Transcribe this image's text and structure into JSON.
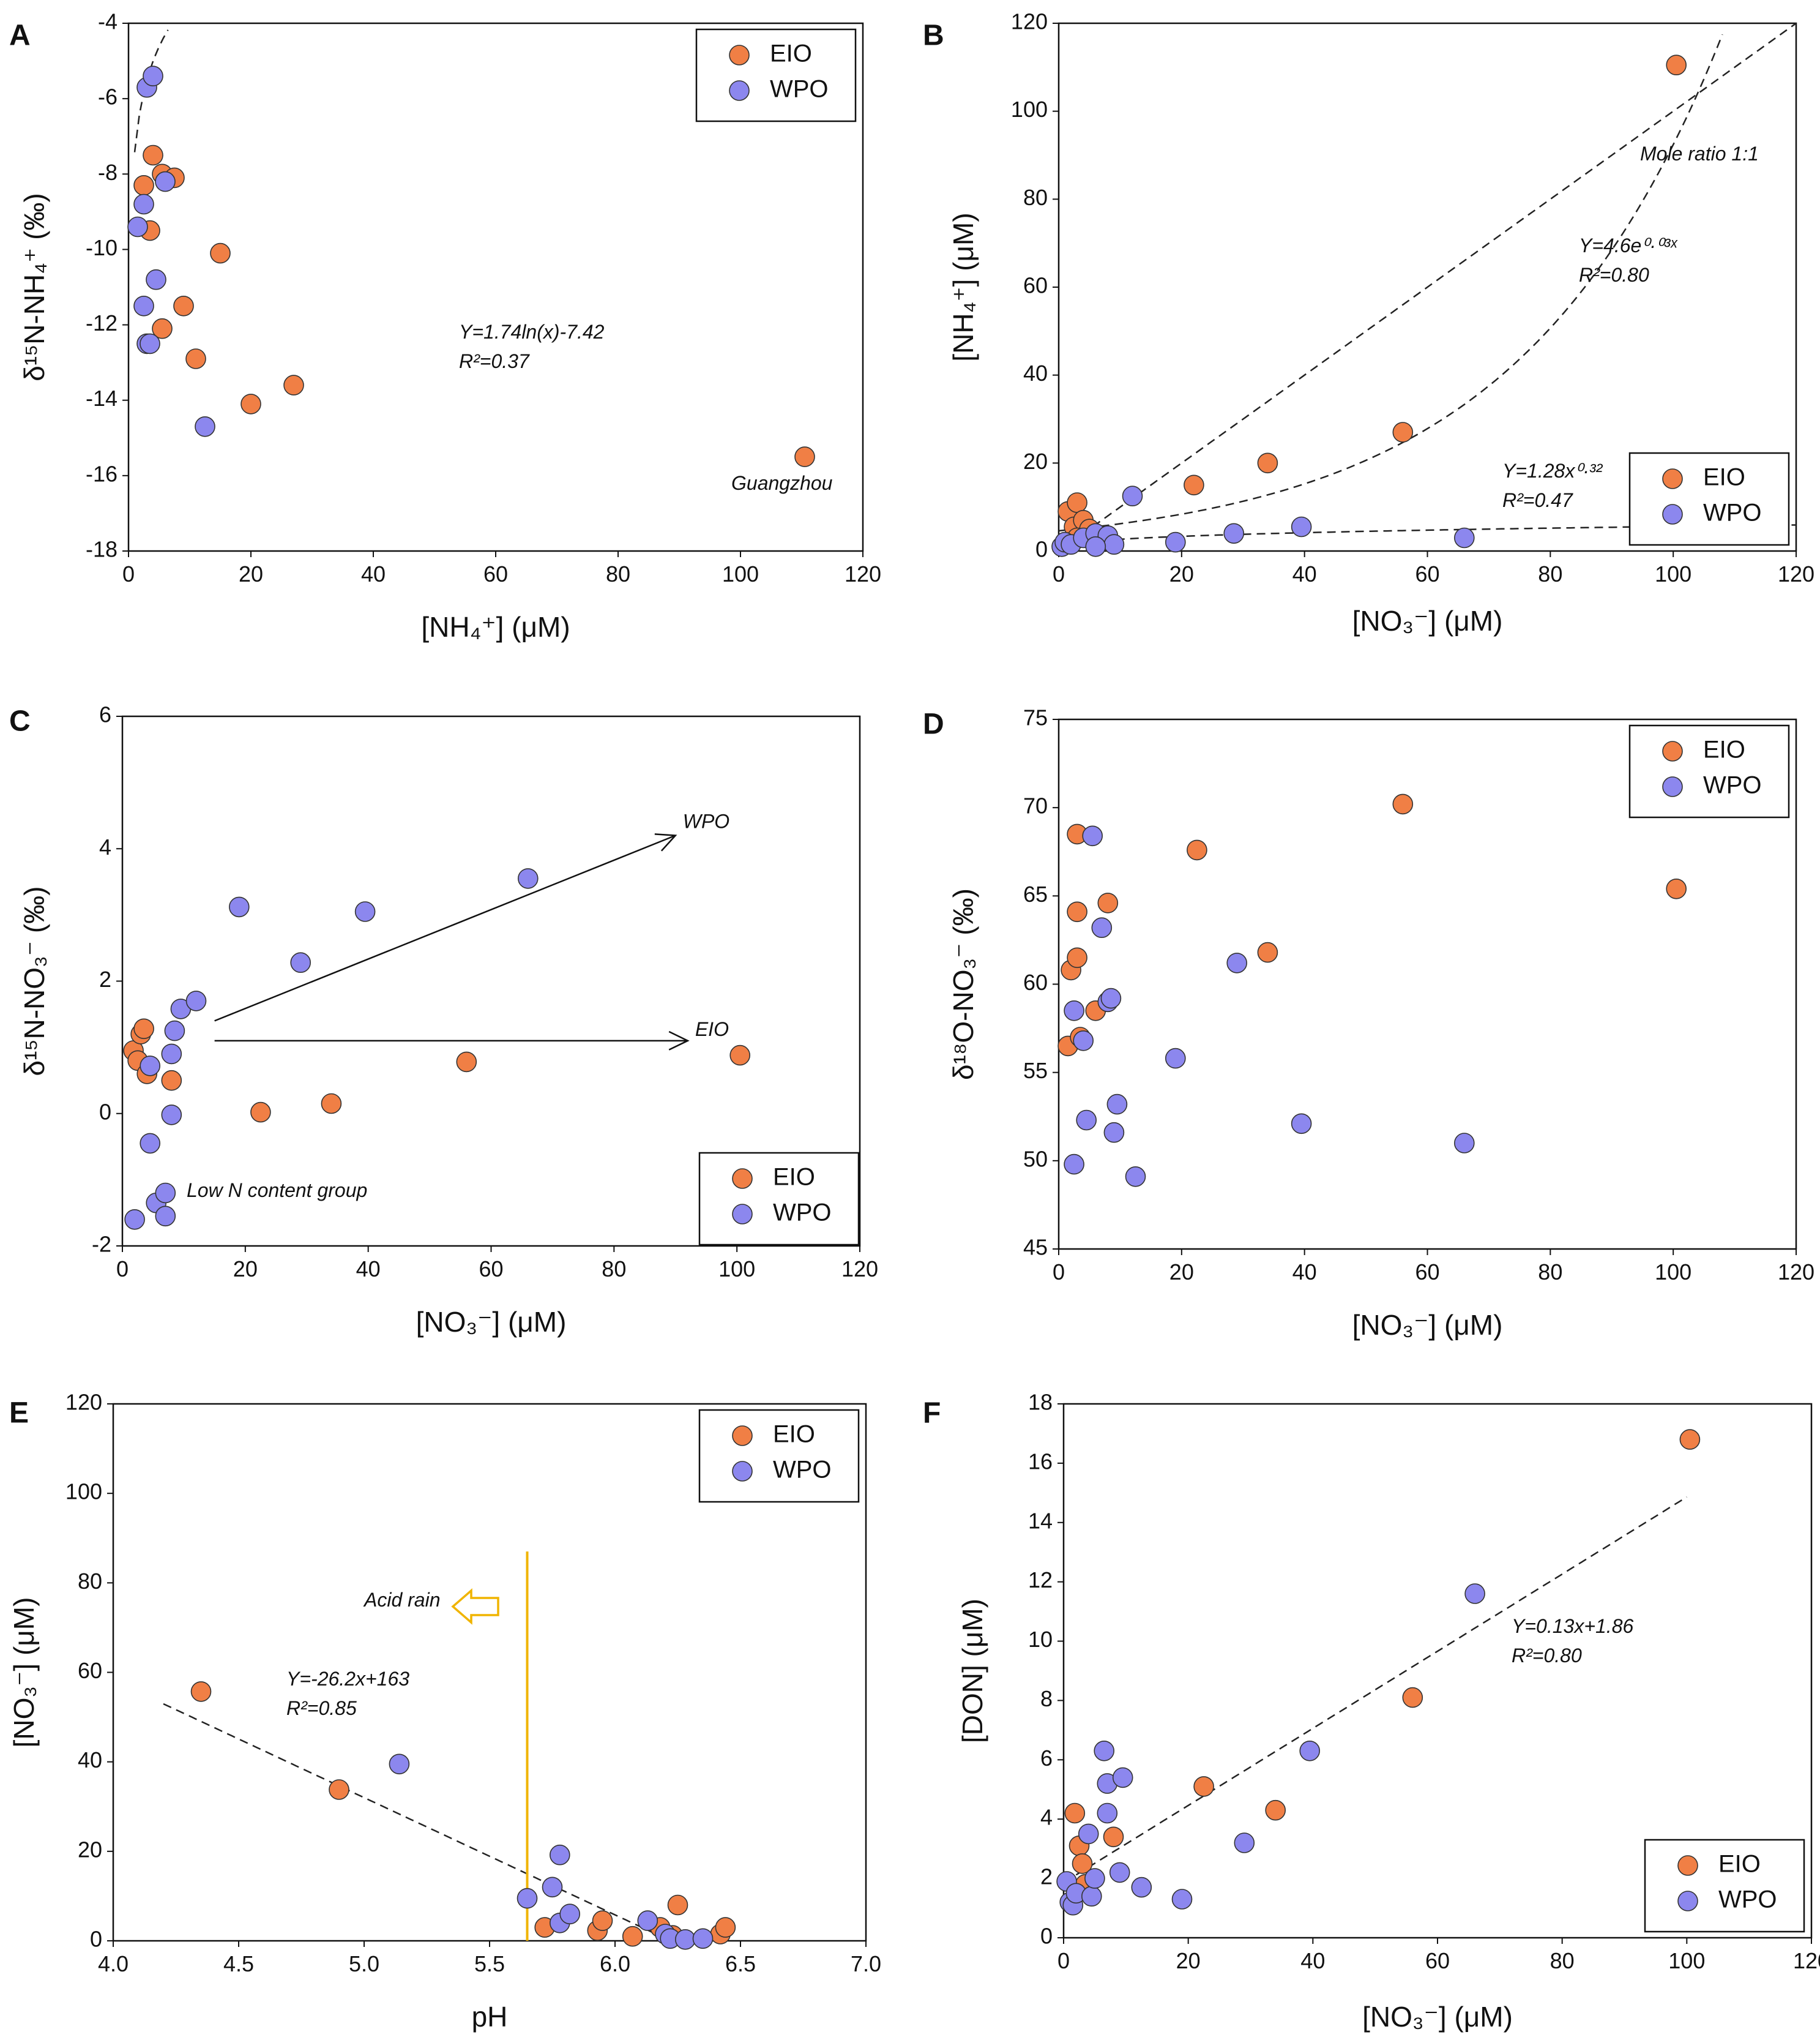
{
  "figure": {
    "colors": {
      "EIO": "#f07f45",
      "WPO": "#8c87ee",
      "acid_line": "#f0b400",
      "axis": "#111111"
    }
  },
  "chart_data": [
    {
      "id": "A",
      "panel_letter": "A",
      "type": "scatter",
      "xlabel": "[NH₄⁺] (μM)",
      "ylabel": "δ¹⁵N-NH₄⁺ (‰)",
      "xlim": [
        0,
        120
      ],
      "ylim": [
        -18,
        -4
      ],
      "xticks": [
        0,
        20,
        40,
        60,
        80,
        100,
        120
      ],
      "yticks": [
        -18,
        -16,
        -14,
        -12,
        -10,
        -8,
        -6,
        -4
      ],
      "legend": {
        "position": "top-right",
        "entries": [
          "EIO",
          "WPO"
        ]
      },
      "series": [
        {
          "name": "EIO",
          "points": [
            [
              2.5,
              -8.3
            ],
            [
              4,
              -7.5
            ],
            [
              5.5,
              -8.0
            ],
            [
              7.5,
              -8.1
            ],
            [
              3.5,
              -9.5
            ],
            [
              5.5,
              -12.1
            ],
            [
              9,
              -11.5
            ],
            [
              11,
              -12.9
            ],
            [
              15,
              -10.1
            ],
            [
              20,
              -14.1
            ],
            [
              27,
              -13.6
            ],
            [
              110.5,
              -15.5
            ]
          ]
        },
        {
          "name": "WPO",
          "points": [
            [
              3,
              -5.7
            ],
            [
              4,
              -5.4
            ],
            [
              6,
              -8.2
            ],
            [
              2.5,
              -8.8
            ],
            [
              1.5,
              -9.4
            ],
            [
              4.5,
              -10.8
            ],
            [
              2.5,
              -11.5
            ],
            [
              3,
              -12.5
            ],
            [
              3.5,
              -12.5
            ],
            [
              12.5,
              -14.7
            ]
          ]
        }
      ],
      "fits": [
        {
          "kind": "log",
          "a": 1.74,
          "b": -7.42,
          "x_range": [
            1,
            110
          ]
        }
      ],
      "annotations": [
        {
          "id": "fit",
          "lines": [
            "Y=1.74ln(x)-7.42",
            "R²=0.37"
          ]
        },
        {
          "id": "site",
          "lines": [
            "Guangzhou"
          ]
        }
      ]
    },
    {
      "id": "B",
      "panel_letter": "B",
      "type": "scatter",
      "xlabel": "[NO₃⁻] (μM)",
      "ylabel": "[NH₄⁺] (μM)",
      "xlim": [
        0,
        120
      ],
      "ylim": [
        0,
        120
      ],
      "xticks": [
        0,
        20,
        40,
        60,
        80,
        100,
        120
      ],
      "yticks": [
        0,
        20,
        40,
        60,
        80,
        100,
        120
      ],
      "legend": {
        "position": "bottom-right",
        "entries": [
          "EIO",
          "WPO"
        ]
      },
      "series": [
        {
          "name": "EIO",
          "points": [
            [
              1.5,
              9
            ],
            [
              3,
              11
            ],
            [
              2.5,
              5.5
            ],
            [
              4,
              7
            ],
            [
              5,
              5
            ],
            [
              3,
              3
            ],
            [
              22,
              15
            ],
            [
              34,
              20
            ],
            [
              56,
              27
            ],
            [
              100.5,
              110.5
            ]
          ]
        },
        {
          "name": "WPO",
          "points": [
            [
              0.5,
              1
            ],
            [
              1,
              2
            ],
            [
              2,
              1.5
            ],
            [
              4,
              3
            ],
            [
              6,
              4
            ],
            [
              8,
              3.5
            ],
            [
              9,
              1.5
            ],
            [
              6,
              1
            ],
            [
              12,
              12.5
            ],
            [
              19,
              2
            ],
            [
              28.5,
              4
            ],
            [
              39.5,
              5.5
            ],
            [
              66,
              3
            ]
          ]
        }
      ],
      "fits": [
        {
          "kind": "linear",
          "m": 1,
          "c": 0,
          "x_range": [
            0,
            120
          ]
        },
        {
          "kind": "exp",
          "a": 4.6,
          "b": 0.03,
          "x_range": [
            0,
            120
          ]
        },
        {
          "kind": "power",
          "a": 1.28,
          "b": 0.32,
          "x_range": [
            0.3,
            120
          ]
        }
      ],
      "annotations": [
        {
          "id": "ratio",
          "lines": [
            "Mole ratio 1:1"
          ]
        },
        {
          "id": "exp",
          "lines": [
            "Y=4.6e⁰·⁰³ˣ",
            "R²=0.80"
          ]
        },
        {
          "id": "power",
          "lines": [
            "Y=1.28x⁰·³²",
            "R²=0.47"
          ]
        }
      ]
    },
    {
      "id": "C",
      "panel_letter": "C",
      "type": "scatter",
      "xlabel": "[NO₃⁻] (μM)",
      "ylabel": "δ¹⁵N-NO₃⁻ (‰)",
      "xlim": [
        0,
        120
      ],
      "ylim": [
        -2,
        6
      ],
      "xticks": [
        0,
        20,
        40,
        60,
        80,
        100,
        120
      ],
      "yticks": [
        -2,
        0,
        2,
        4,
        6
      ],
      "legend": {
        "position": "bottom-right",
        "entries": [
          "EIO",
          "WPO"
        ]
      },
      "series": [
        {
          "name": "EIO",
          "points": [
            [
              1.8,
              0.95
            ],
            [
              2.5,
              0.8
            ],
            [
              3,
              1.2
            ],
            [
              3.5,
              1.28
            ],
            [
              4,
              0.6
            ],
            [
              8,
              0.5
            ],
            [
              22.5,
              0.02
            ],
            [
              34,
              0.15
            ],
            [
              56,
              0.78
            ],
            [
              100.5,
              0.88
            ]
          ]
        },
        {
          "name": "WPO",
          "points": [
            [
              2,
              -1.6
            ],
            [
              4.5,
              0.72
            ],
            [
              8,
              0.9
            ],
            [
              8.5,
              1.25
            ],
            [
              9.5,
              1.58
            ],
            [
              12,
              1.7
            ],
            [
              8,
              -0.02
            ],
            [
              4.5,
              -0.45
            ],
            [
              5.5,
              -1.35
            ],
            [
              7,
              -1.2
            ],
            [
              7,
              -1.55
            ],
            [
              19,
              3.12
            ],
            [
              29,
              2.28
            ],
            [
              39.5,
              3.05
            ],
            [
              66,
              3.55
            ]
          ]
        }
      ],
      "arrows": [
        {
          "label": "WPO",
          "from": [
            15,
            1.4
          ],
          "to": [
            90,
            4.2
          ]
        },
        {
          "label": "EIO",
          "from": [
            15,
            1.1
          ],
          "to": [
            92,
            1.1
          ]
        }
      ],
      "annotations": [
        {
          "id": "group",
          "lines": [
            "Low N content group"
          ]
        }
      ]
    },
    {
      "id": "D",
      "panel_letter": "D",
      "type": "scatter",
      "xlabel": "[NO₃⁻] (μM)",
      "ylabel": "δ¹⁸O-NO₃⁻ (‰)",
      "xlim": [
        0,
        120
      ],
      "ylim": [
        45,
        75
      ],
      "xticks": [
        0,
        20,
        40,
        60,
        80,
        100,
        120
      ],
      "yticks": [
        45,
        50,
        55,
        60,
        65,
        70,
        75
      ],
      "legend": {
        "position": "top-right",
        "entries": [
          "EIO",
          "WPO"
        ]
      },
      "series": [
        {
          "name": "EIO",
          "points": [
            [
              3,
              68.5
            ],
            [
              3,
              64.1
            ],
            [
              2,
              60.8
            ],
            [
              3,
              61.5
            ],
            [
              1.5,
              56.5
            ],
            [
              3.5,
              57
            ],
            [
              6,
              58.5
            ],
            [
              8,
              64.6
            ],
            [
              22.5,
              67.6
            ],
            [
              34,
              61.8
            ],
            [
              56,
              70.2
            ],
            [
              100.5,
              65.4
            ]
          ]
        },
        {
          "name": "WPO",
          "points": [
            [
              5.5,
              68.4
            ],
            [
              7,
              63.2
            ],
            [
              8,
              59
            ],
            [
              8.5,
              59.2
            ],
            [
              2.5,
              58.5
            ],
            [
              4,
              56.8
            ],
            [
              4.5,
              52.3
            ],
            [
              2.5,
              49.8
            ],
            [
              9,
              51.6
            ],
            [
              9.5,
              53.2
            ],
            [
              12.5,
              49.1
            ],
            [
              19,
              55.8
            ],
            [
              29,
              61.2
            ],
            [
              39.5,
              52.1
            ],
            [
              66,
              51
            ]
          ]
        }
      ]
    },
    {
      "id": "E",
      "panel_letter": "E",
      "type": "scatter",
      "xlabel": "pH",
      "ylabel": "[NO₃⁻] (μM)",
      "xlim": [
        4.0,
        7.0
      ],
      "ylim": [
        0,
        120
      ],
      "xticks": [
        4.0,
        4.5,
        5.0,
        5.5,
        6.0,
        6.5,
        7.0
      ],
      "yticks": [
        0,
        20,
        40,
        60,
        80,
        100,
        120
      ],
      "legend": {
        "position": "top-right",
        "entries": [
          "EIO",
          "WPO"
        ]
      },
      "series": [
        {
          "name": "EIO",
          "points": [
            [
              4.35,
              55.7
            ],
            [
              4.9,
              33.8
            ],
            [
              5.72,
              3
            ],
            [
              5.93,
              2.3
            ],
            [
              5.95,
              4.5
            ],
            [
              6.07,
              1
            ],
            [
              6.18,
              3
            ],
            [
              6.23,
              1.2
            ],
            [
              6.25,
              8
            ],
            [
              6.42,
              1.5
            ],
            [
              6.44,
              3
            ]
          ]
        },
        {
          "name": "WPO",
          "points": [
            [
              5.14,
              39.5
            ],
            [
              5.65,
              9.5
            ],
            [
              5.75,
              12
            ],
            [
              5.78,
              4
            ],
            [
              5.78,
              19.2
            ],
            [
              5.82,
              6
            ],
            [
              6.13,
              4.5
            ],
            [
              6.2,
              1.5
            ],
            [
              6.22,
              0.5
            ],
            [
              6.28,
              0.3
            ],
            [
              6.35,
              0.5
            ]
          ]
        }
      ],
      "fits": [
        {
          "kind": "linear",
          "m": -26.2,
          "c": 163,
          "x_range": [
            4.2,
            6.2
          ]
        }
      ],
      "vline": {
        "x": 5.65,
        "y_range": [
          0,
          87
        ]
      },
      "annotations": [
        {
          "id": "fit",
          "lines": [
            "Y=-26.2x+163",
            "R²=0.85"
          ]
        },
        {
          "id": "acid",
          "lines": [
            "Acid rain"
          ]
        }
      ]
    },
    {
      "id": "F",
      "panel_letter": "F",
      "type": "scatter",
      "xlabel": "[NO₃⁻] (μM)",
      "ylabel": "[DON] (μM)",
      "xlim": [
        0,
        120
      ],
      "ylim": [
        0,
        18
      ],
      "xticks": [
        0,
        20,
        40,
        60,
        80,
        100,
        120
      ],
      "yticks": [
        0,
        2,
        4,
        6,
        8,
        10,
        12,
        14,
        16,
        18
      ],
      "legend": {
        "position": "bottom-right",
        "entries": [
          "EIO",
          "WPO"
        ]
      },
      "series": [
        {
          "name": "EIO",
          "points": [
            [
              1.8,
              4.2
            ],
            [
              2.5,
              3.1
            ],
            [
              3,
              2.5
            ],
            [
              3.5,
              1.8
            ],
            [
              8,
              3.4
            ],
            [
              22.5,
              5.1
            ],
            [
              34,
              4.3
            ],
            [
              56,
              8.1
            ],
            [
              100.5,
              16.8
            ]
          ]
        },
        {
          "name": "WPO",
          "points": [
            [
              0.5,
              1.9
            ],
            [
              1,
              1.2
            ],
            [
              1.5,
              1.1
            ],
            [
              2,
              1.5
            ],
            [
              4,
              3.5
            ],
            [
              4.5,
              1.4
            ],
            [
              5,
              2
            ],
            [
              6.5,
              6.3
            ],
            [
              7,
              5.2
            ],
            [
              7,
              4.2
            ],
            [
              9,
              2.2
            ],
            [
              9.5,
              5.4
            ],
            [
              12.5,
              1.7
            ],
            [
              19,
              1.3
            ],
            [
              29,
              3.2
            ],
            [
              39.5,
              6.3
            ],
            [
              66,
              11.6
            ]
          ]
        }
      ],
      "fits": [
        {
          "kind": "linear",
          "m": 0.13,
          "c": 1.86,
          "x_range": [
            2,
            100
          ]
        }
      ],
      "annotations": [
        {
          "id": "fit",
          "lines": [
            "Y=0.13x+1.86",
            "R²=0.80"
          ]
        }
      ]
    }
  ]
}
